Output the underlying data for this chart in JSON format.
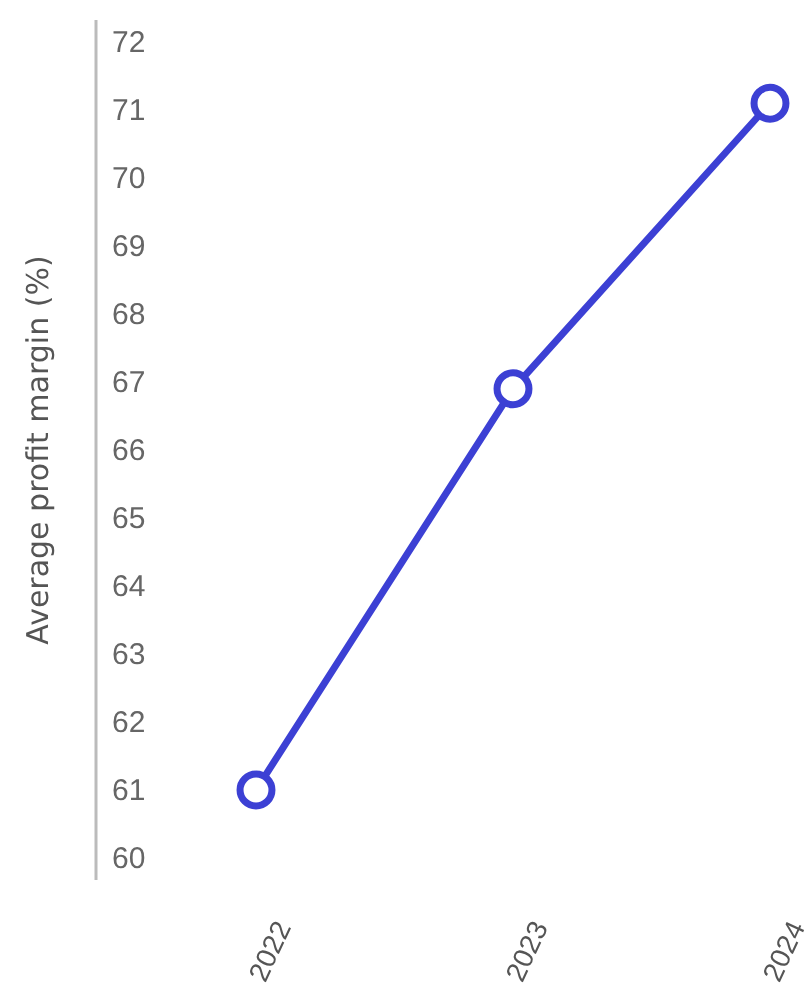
{
  "chart_data": {
    "type": "line",
    "ylabel": "Average profit margin (%)",
    "categories": [
      "2022",
      "2023",
      "2024"
    ],
    "series": [
      {
        "color": "#3c40d4",
        "values": [
          61.0,
          66.9,
          71.1
        ]
      }
    ],
    "ylim": [
      60,
      72
    ],
    "yticks": [
      60,
      61,
      62,
      63,
      64,
      65,
      66,
      67,
      68,
      69,
      70,
      71,
      72
    ],
    "grid": false,
    "marker": "circle",
    "line_style": "solid"
  }
}
